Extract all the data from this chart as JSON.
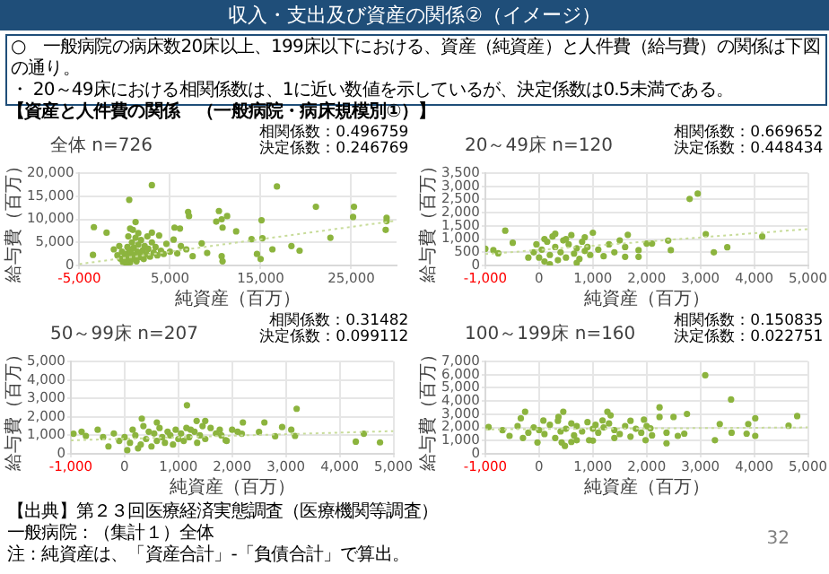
{
  "chart_data": [
    {
      "type": "scatter",
      "title": "全体 n=726",
      "xlabel": "純資産（百万）",
      "ylabel": "給与費（百万）",
      "grid": true,
      "annotations": [
        "収入・支出及び資産の関係②（イメージ）",
        "○　一般病院の病床数20床以上、199床以下における、資産（純資産）と人件費（給与費）の関係は下図の通り。",
        "・ 20～49床における相関係数は、1に近い数値を示しているが、決定係数は0.5未満である。",
        "【資産と人件費の関係　（一般病院・病床規模別①）】",
        "相関係数：0.496759",
        "決定係数：0.246769",
        "【出典】第２３回医療経済実態調査（医療機関等調査）",
        "一般病院：（集計１）全体",
        "注：純資産は、「資産合計」-「負債合計」で算出。",
        "32"
      ],
      "xlim": [
        -5000,
        30000
      ],
      "xticks": [
        {
          "value": -5000,
          "label": "-5,000"
        },
        {
          "value": 5000,
          "label": "5,000"
        },
        {
          "value": 15000,
          "label": "15,000"
        },
        {
          "value": 25000,
          "label": "25,000"
        }
      ],
      "ylim": [
        0,
        20000
      ],
      "yticks": [
        {
          "value": 0,
          "label": "0"
        },
        {
          "value": 5000,
          "label": "5,000"
        },
        {
          "value": 10000,
          "label": "10,000"
        },
        {
          "value": 15000,
          "label": "15,000"
        },
        {
          "value": 20000,
          "label": "20,000"
        }
      ],
      "series": [
        {
          "type": "scatter",
          "color": "#8cb43e",
          "x": [
            3000,
            16800,
            500,
            21100,
            25300,
            25200,
            28900,
            28900,
            28800,
            15100,
            7000,
            7100,
            10400,
            11300,
            10700,
            10100,
            10800,
            12300,
            14000,
            15200,
            14600,
            15000,
            16300,
            18400,
            19300,
            22700,
            10700,
            10800,
            8500,
            9100,
            -3400,
            -2000,
            -3500,
            600,
            1200,
            5500,
            6100,
            3000,
            -800,
            -500,
            -300,
            -200,
            0,
            100,
            200,
            300,
            400,
            500,
            600,
            700,
            800,
            900,
            1000,
            1100,
            1200,
            1300,
            1400,
            1500,
            1600,
            1700,
            1800,
            2000,
            2100,
            2200,
            2400,
            2600,
            2800,
            3000,
            3200,
            3400,
            3600,
            3800,
            4000,
            4300,
            4600,
            5000,
            5400,
            5800,
            6200,
            6800,
            7500,
            400,
            900,
            -1200,
            -600,
            1500,
            2500,
            200
          ],
          "values": [
            17400,
            17100,
            14200,
            12700,
            12700,
            10500,
            10300,
            9600,
            7700,
            9800,
            11600,
            10700,
            11800,
            10700,
            10000,
            9500,
            8200,
            7400,
            5700,
            5900,
            2500,
            1400,
            3500,
            4200,
            3200,
            6000,
            2000,
            900,
            4800,
            2700,
            8300,
            7100,
            2300,
            8000,
            9400,
            8200,
            8000,
            7100,
            2200,
            1500,
            3000,
            800,
            1900,
            1200,
            2500,
            4000,
            1800,
            3500,
            700,
            2800,
            5000,
            1500,
            3800,
            2200,
            6000,
            900,
            3000,
            4500,
            1800,
            2600,
            5500,
            3300,
            1400,
            4200,
            2400,
            3600,
            1900,
            5000,
            2800,
            4000,
            2200,
            6500,
            3200,
            2500,
            4700,
            3000,
            5600,
            2600,
            4200,
            3500,
            2000,
            6300,
            7700,
            3500,
            4200,
            7000,
            6300,
            200
          ]
        },
        {
          "type": "line",
          "color": "#c8dc9a",
          "line_style": "dotted",
          "marker": "none",
          "x": [
            -5000,
            30000
          ],
          "values": [
            300,
            9700
          ]
        }
      ]
    },
    {
      "type": "scatter",
      "title": "20～49床 n=120",
      "xlabel": "純資産（百万）",
      "ylabel": "給与費（百万）",
      "grid": true,
      "annotations": [
        "相関係数：0.669652",
        "決定係数：0.448434"
      ],
      "xlim": [
        -1000,
        5000
      ],
      "xticks": [
        {
          "value": -1000,
          "label": "-1,000"
        },
        {
          "value": 0,
          "label": "0"
        },
        {
          "value": 1000,
          "label": "1,000"
        },
        {
          "value": 2000,
          "label": "2,000"
        },
        {
          "value": 3000,
          "label": "3,000"
        },
        {
          "value": 4000,
          "label": "4,000"
        },
        {
          "value": 5000,
          "label": "5,000"
        }
      ],
      "ylim": [
        0,
        3500
      ],
      "yticks": [
        {
          "value": 0,
          "label": "0"
        },
        {
          "value": 500,
          "label": "500"
        },
        {
          "value": 1000,
          "label": "1,000"
        },
        {
          "value": 1500,
          "label": "1,500"
        },
        {
          "value": 2000,
          "label": "2,000"
        },
        {
          "value": 2500,
          "label": "2,500"
        },
        {
          "value": 3000,
          "label": "3,000"
        },
        {
          "value": 3500,
          "label": "3,500"
        }
      ],
      "series": [
        {
          "type": "scatter",
          "color": "#8cb43e",
          "x": [
            2800,
            2950,
            3100,
            4150,
            3250,
            3500,
            2450,
            2100,
            2400,
            2000,
            1850,
            1650,
            1850,
            1600,
            1000,
            850,
            -1000,
            -630,
            -850,
            -490,
            -760,
            0,
            50,
            100,
            150,
            200,
            250,
            300,
            350,
            400,
            450,
            500,
            550,
            600,
            650,
            700,
            750,
            800,
            850,
            900,
            950,
            -100,
            -50,
            100,
            300,
            500,
            1100,
            1200,
            1300,
            1400,
            1500,
            1600,
            -200,
            700,
            200
          ],
          "values": [
            2520,
            2720,
            1190,
            1100,
            500,
            690,
            580,
            830,
            940,
            830,
            580,
            1160,
            330,
            330,
            1240,
            1070,
            630,
            1320,
            580,
            860,
            460,
            300,
            600,
            150,
            900,
            400,
            1100,
            700,
            200,
            500,
            950,
            300,
            800,
            1150,
            450,
            650,
            250,
            900,
            550,
            700,
            400,
            500,
            800,
            1000,
            1200,
            1000,
            600,
            350,
            800,
            500,
            950,
            700,
            300,
            100,
            50
          ]
        },
        {
          "type": "line",
          "color": "#c8dc9a",
          "line_style": "dotted",
          "marker": "none",
          "x": [
            -1000,
            5000
          ],
          "values": [
            430,
            1380
          ]
        }
      ]
    },
    {
      "type": "scatter",
      "title": "50～99床 n=207",
      "xlabel": "純資産（百万）",
      "ylabel": "給与費（百万）",
      "grid": true,
      "annotations": [
        "相関係数：0.31482",
        "決定係数：0.099112"
      ],
      "xlim": [
        -1000,
        5000
      ],
      "xticks": [
        {
          "value": -1000,
          "label": "-1,000"
        },
        {
          "value": 0,
          "label": "0"
        },
        {
          "value": 1000,
          "label": "1,000"
        },
        {
          "value": 2000,
          "label": "2,000"
        },
        {
          "value": 3000,
          "label": "3,000"
        },
        {
          "value": 4000,
          "label": "4,000"
        },
        {
          "value": 5000,
          "label": "5,000"
        }
      ],
      "ylim": [
        0,
        5000
      ],
      "yticks": [
        {
          "value": 0,
          "label": "0"
        },
        {
          "value": 1000,
          "label": "1,000"
        },
        {
          "value": 2000,
          "label": "2,000"
        },
        {
          "value": 3000,
          "label": "3,000"
        },
        {
          "value": 4000,
          "label": "4,000"
        },
        {
          "value": 5000,
          "label": "5,000"
        }
      ],
      "series": [
        {
          "type": "scatter",
          "color": "#8cb43e",
          "x": [
            1160,
            3200,
            4300,
            4450,
            4750,
            2100,
            2180,
            2200,
            2930,
            3100,
            3170,
            2500,
            2600,
            2800,
            1880,
            1770,
            1500,
            1340,
            1230,
            320,
            -950,
            -800,
            -720,
            0,
            100,
            150,
            200,
            300,
            350,
            400,
            450,
            500,
            550,
            600,
            650,
            700,
            750,
            800,
            850,
            900,
            950,
            1000,
            1050,
            1100,
            1150,
            1200,
            1300,
            1350,
            1400,
            1450,
            1500,
            1600,
            1700,
            -100,
            -200,
            -300,
            -400,
            -500,
            50,
            250,
            600,
            1800,
            1900,
            2000
          ],
          "values": [
            2630,
            2440,
            660,
            1090,
            620,
            1200,
            1090,
            1700,
            1450,
            1300,
            970,
            1180,
            1700,
            950,
            730,
            1300,
            1780,
            1780,
            1300,
            1900,
            1090,
            1200,
            970,
            900,
            600,
            1300,
            1000,
            500,
            1500,
            800,
            1200,
            400,
            1100,
            700,
            1400,
            900,
            600,
            1200,
            1000,
            500,
            1300,
            800,
            1100,
            700,
            1400,
            900,
            1200,
            600,
            1000,
            1500,
            800,
            1400,
            1100,
            700,
            1100,
            400,
            900,
            1300,
            200,
            300,
            1700,
            1000,
            700,
            1300
          ]
        },
        {
          "type": "line",
          "color": "#c8dc9a",
          "line_style": "dotted",
          "marker": "none",
          "x": [
            -1000,
            5000
          ],
          "values": [
            730,
            1230
          ]
        }
      ]
    },
    {
      "type": "scatter",
      "title": "100～199床 n=160",
      "xlabel": "純資産（百万）",
      "ylabel": "給与費（百万）",
      "grid": true,
      "annotations": [
        "相関係数：0.150835",
        "決定係数：0.022751"
      ],
      "xlim": [
        -1000,
        5000
      ],
      "xticks": [
        {
          "value": -1000,
          "label": "-1,000"
        },
        {
          "value": 0,
          "label": "0"
        },
        {
          "value": 1000,
          "label": "1,000"
        },
        {
          "value": 2000,
          "label": "2,000"
        },
        {
          "value": 3000,
          "label": "3,000"
        },
        {
          "value": 4000,
          "label": "4,000"
        },
        {
          "value": 5000,
          "label": "5,000"
        }
      ],
      "ylim": [
        0,
        7000
      ],
      "yticks": [
        {
          "value": 0,
          "label": "0"
        },
        {
          "value": 1000,
          "label": "1,000"
        },
        {
          "value": 2000,
          "label": "2,000"
        },
        {
          "value": 3000,
          "label": "3,000"
        },
        {
          "value": 4000,
          "label": "4,000"
        },
        {
          "value": 5000,
          "label": "5,000"
        },
        {
          "value": 6000,
          "label": "6,000"
        },
        {
          "value": 7000,
          "label": "7,000"
        }
      ],
      "series": [
        {
          "type": "scatter",
          "color": "#8cb43e",
          "x": [
            3090,
            3570,
            3360,
            3270,
            3580,
            3890,
            3860,
            4020,
            4020,
            4640,
            4800,
            2750,
            2500,
            2240,
            2240,
            2370,
            2370,
            2580,
            2700,
            1950,
            2070,
            1980,
            1270,
            1330,
            1180,
            450,
            360,
            80,
            -260,
            -340,
            420,
            480,
            700,
            930,
            -30,
            -940,
            -680,
            -550,
            -300,
            0,
            100,
            200,
            300,
            350,
            400,
            500,
            600,
            650,
            700,
            800,
            900,
            1000,
            1050,
            1100,
            1200,
            1300,
            1400,
            1500,
            1600,
            1700,
            1800,
            1900,
            2000,
            2100,
            -100,
            -200,
            -400,
            600,
            1000,
            1400,
            1700
          ],
          "values": [
            5950,
            4120,
            2260,
            1030,
            1600,
            2260,
            1530,
            2690,
            1360,
            2130,
            2860,
            3020,
            2790,
            3520,
            2790,
            1600,
            800,
            1360,
            1530,
            2590,
            1930,
            1030,
            3190,
            2920,
            2530,
            3190,
            2790,
            2520,
            3190,
            2690,
            860,
            600,
            1030,
            1030,
            860,
            2030,
            1790,
            1360,
            1200,
            1800,
            1500,
            2200,
            1200,
            2500,
            1700,
            1900,
            2300,
            1400,
            2100,
            1700,
            2400,
            1900,
            2200,
            1600,
            2000,
            2300,
            1800,
            1500,
            2100,
            1300,
            1900,
            1600,
            2100,
            1400,
            2000,
            1600,
            2100,
            900,
            1000,
            1200,
            2500
          ]
        },
        {
          "type": "line",
          "color": "#c8dc9a",
          "line_style": "dotted",
          "marker": "none",
          "x": [
            -1000,
            5000
          ],
          "values": [
            1850,
            2000
          ]
        }
      ]
    }
  ]
}
